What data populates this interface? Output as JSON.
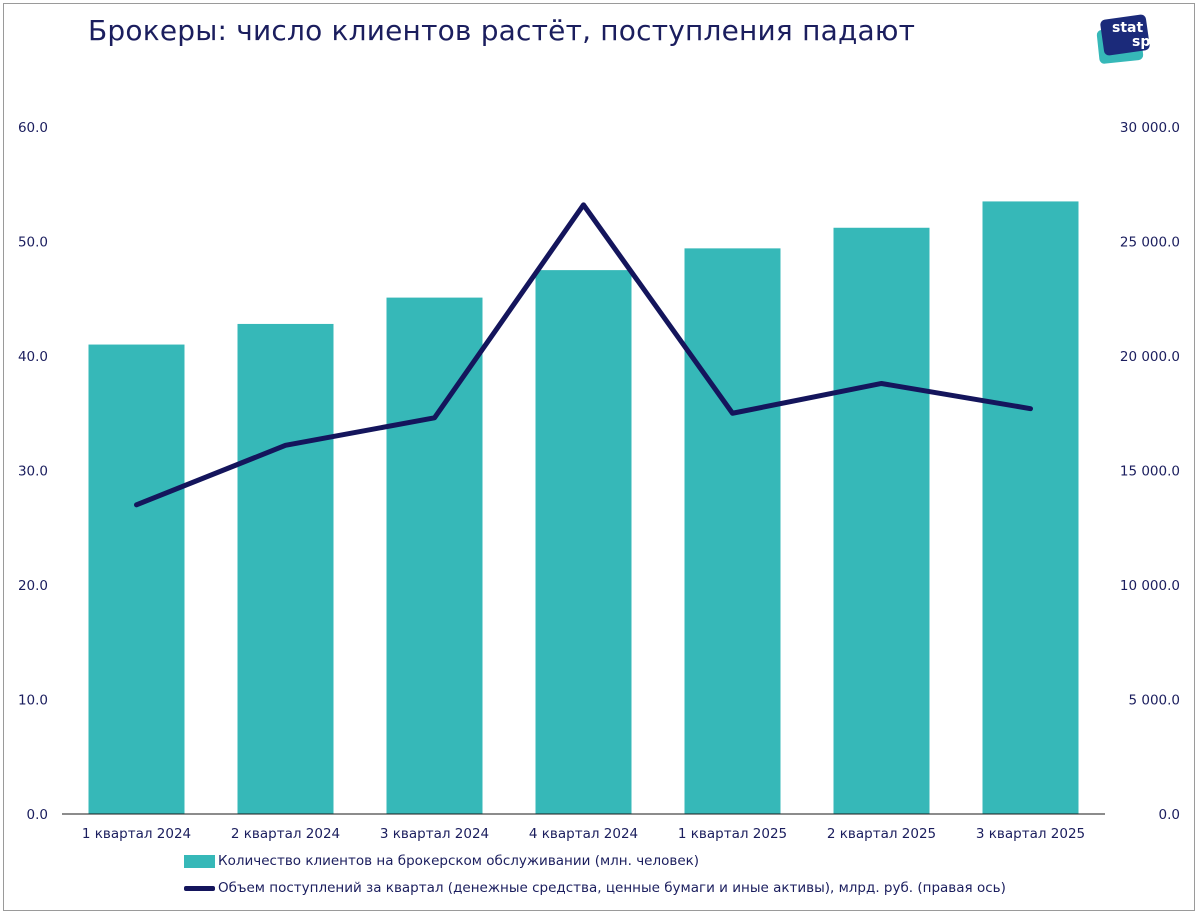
{
  "title": "Брокеры: число клиентов растёт, поступления падают",
  "logo": {
    "line1": "stat",
    "line2": "space"
  },
  "colors": {
    "bar": "#36b8b8",
    "line": "#14155c",
    "text": "#1b1e5e",
    "axis": "#1a1a1a"
  },
  "chart_data": {
    "type": "bar",
    "categories": [
      "1 квартал 2024",
      "2 квартал 2024",
      "3 квартал 2024",
      "4 квартал 2024",
      "1 квартал 2025",
      "2 квартал 2025",
      "3 квартал 2025"
    ],
    "series": [
      {
        "name": "Количество клиентов на брокерском обслуживании (млн. человек)",
        "type": "bar",
        "axis": "left",
        "values": [
          41.0,
          42.8,
          45.1,
          47.5,
          49.4,
          51.2,
          53.5
        ]
      },
      {
        "name": "Объем поступлений за квартал (денежные средства, ценные бумаги и иные активы), млрд. руб. (правая ось)",
        "type": "line",
        "axis": "right",
        "values": [
          13500,
          16100,
          17300,
          26600,
          17500,
          18800,
          17700
        ]
      }
    ],
    "y_left": {
      "ylim": [
        0,
        60
      ],
      "ticks": [
        "0.0",
        "10.0",
        "20.0",
        "30.0",
        "40.0",
        "50.0",
        "60.0"
      ]
    },
    "y_right": {
      "ylim": [
        0,
        30000
      ],
      "ticks": [
        "0.0",
        "5 000.0",
        "10 000.0",
        "15 000.0",
        "20 000.0",
        "25 000.0",
        "30 000.0"
      ]
    },
    "grid": false,
    "legend_position": "bottom"
  }
}
